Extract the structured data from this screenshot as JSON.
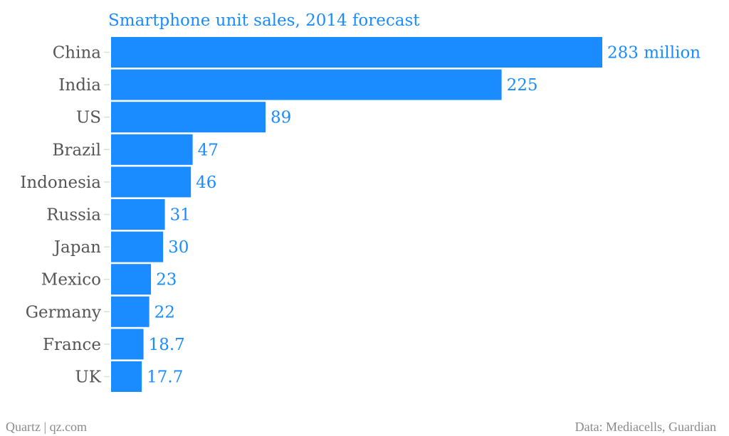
{
  "chart_data": {
    "type": "bar",
    "orientation": "horizontal",
    "title": "Smartphone unit sales, 2014 forecast",
    "categories": [
      "China",
      "India",
      "US",
      "Brazil",
      "Indonesia",
      "Russia",
      "Japan",
      "Mexico",
      "Germany",
      "France",
      "UK"
    ],
    "values": [
      283,
      225,
      89,
      47,
      46,
      31,
      30,
      23,
      22,
      18.7,
      17.7
    ],
    "value_labels": [
      "283 million",
      "225",
      "89",
      "47",
      "46",
      "31",
      "30",
      "23",
      "22",
      "18.7",
      "17.7"
    ],
    "unit": "million",
    "xlabel": "",
    "ylabel": "",
    "xlim": [
      0,
      283
    ],
    "grid": false,
    "legend": "none",
    "color": "#1a8cff"
  },
  "footer": {
    "left": "Quartz | qz.com",
    "right": "Data: Mediacells, Guardian"
  },
  "colors": {
    "bar": "#1a8cff",
    "title": "#1a8cff",
    "category_label": "#555555",
    "footer": "#8a8a8a",
    "tick": "#dddddd"
  }
}
